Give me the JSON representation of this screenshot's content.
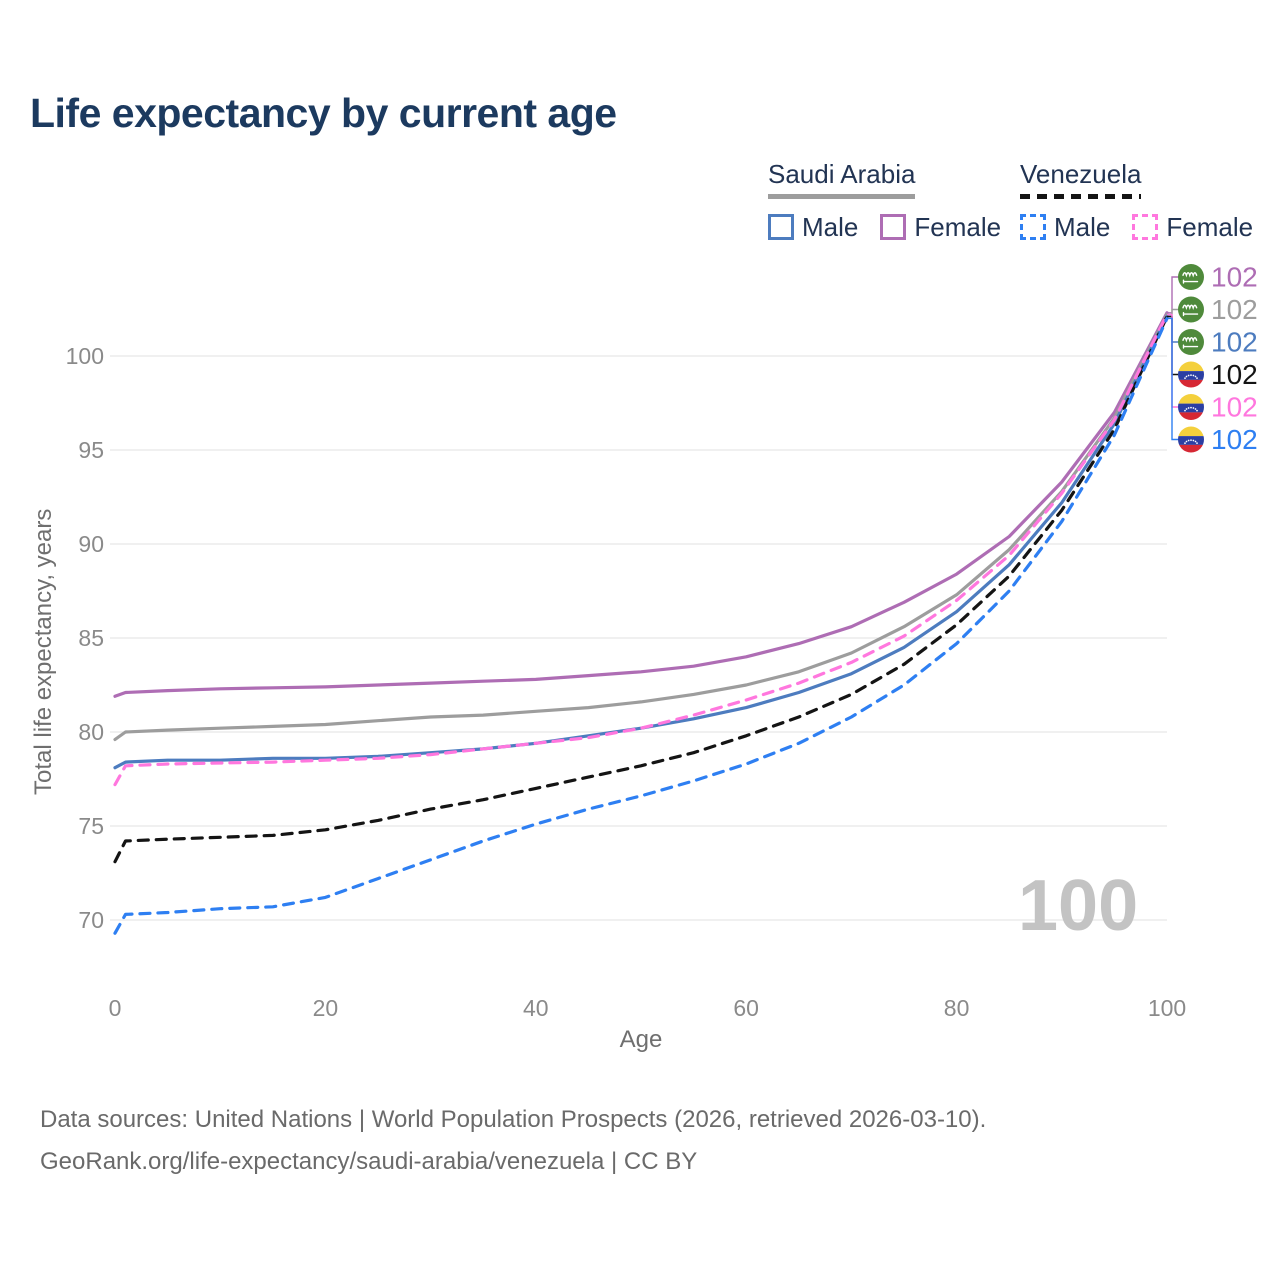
{
  "page": {
    "title": "Life expectancy by current age",
    "watermark": "100",
    "footer": {
      "line1": "Data sources: United Nations | World Population Prospects (2026, retrieved 2026-03-10).",
      "line2": "GeoRank.org/life-expectancy/saudi-arabia/venezuela | CC BY"
    }
  },
  "legend": {
    "groups": [
      {
        "label": "Saudi Arabia",
        "line_style": "solid",
        "underline_color": "#9d9d9d",
        "items": [
          {
            "label": "Male",
            "color": "#4d7cbf",
            "dashed": false
          },
          {
            "label": "Female",
            "color": "#ae6db4",
            "dashed": false
          }
        ]
      },
      {
        "label": "Venezuela",
        "line_style": "dashed",
        "underline_color": "#141414",
        "items": [
          {
            "label": "Male",
            "color": "#2e7ff2",
            "dashed": true
          },
          {
            "label": "Female",
            "color": "#ff77de",
            "dashed": true
          }
        ]
      }
    ]
  },
  "icons": {
    "saudi_flag": "saudi-arabia-flag-icon",
    "venezuela_flag": "venezuela-flag-icon",
    "flag_colors": {
      "saudi_green": "#4f8a3b",
      "venezuela_yellow": "#f4d03c",
      "venezuela_blue": "#2b3fa3",
      "venezuela_red": "#d62834"
    }
  },
  "chart_data": {
    "type": "line",
    "title": "Life expectancy by current age",
    "xlabel": "Age",
    "ylabel": "Total life expectancy, years",
    "x_ticks": [
      0,
      20,
      40,
      60,
      80,
      100
    ],
    "y_ticks": [
      70,
      75,
      80,
      85,
      90,
      95,
      100
    ],
    "x_range": [
      0,
      100
    ],
    "y_range": [
      69,
      103.5
    ],
    "grid": "horizontal-only",
    "legend_position": "top-right",
    "x": [
      0,
      1,
      5,
      10,
      15,
      20,
      25,
      30,
      35,
      40,
      45,
      50,
      55,
      60,
      65,
      70,
      75,
      80,
      85,
      90,
      95,
      100
    ],
    "series": [
      {
        "name": "Saudi Arabia Female",
        "country": "Saudi Arabia",
        "sex": "Female",
        "flag": "saudi",
        "color": "#ae6db4",
        "dashed": false,
        "end_value": "102",
        "values": [
          81.9,
          82.1,
          82.2,
          82.3,
          82.35,
          82.4,
          82.5,
          82.6,
          82.7,
          82.8,
          83.0,
          83.2,
          83.5,
          84.0,
          84.7,
          85.6,
          86.9,
          88.4,
          90.4,
          93.3,
          97.0,
          102.3
        ]
      },
      {
        "name": "Saudi Arabia Both sexes",
        "country": "Saudi Arabia",
        "sex": "Both sexes",
        "flag": "saudi",
        "color": "#9d9d9d",
        "dashed": false,
        "end_value": "102",
        "values": [
          79.6,
          80.0,
          80.1,
          80.2,
          80.3,
          80.4,
          80.6,
          80.8,
          80.9,
          81.1,
          81.3,
          81.6,
          82.0,
          82.5,
          83.2,
          84.2,
          85.6,
          87.3,
          89.7,
          92.8,
          96.7,
          102.2
        ]
      },
      {
        "name": "Saudi Arabia Male",
        "country": "Saudi Arabia",
        "sex": "Male",
        "flag": "saudi",
        "color": "#4d7cbf",
        "dashed": false,
        "end_value": "102",
        "values": [
          78.1,
          78.4,
          78.5,
          78.5,
          78.6,
          78.6,
          78.7,
          78.9,
          79.1,
          79.4,
          79.8,
          80.2,
          80.7,
          81.3,
          82.1,
          83.1,
          84.5,
          86.4,
          88.9,
          92.2,
          96.4,
          102.1
        ]
      },
      {
        "name": "Venezuela Both sexes",
        "country": "Venezuela",
        "sex": "Both sexes",
        "flag": "venezuela",
        "color": "#141414",
        "dashed": true,
        "end_value": "102",
        "values": [
          73.1,
          74.2,
          74.3,
          74.4,
          74.5,
          74.8,
          75.3,
          75.9,
          76.4,
          77.0,
          77.6,
          78.2,
          78.9,
          79.8,
          80.8,
          82.0,
          83.6,
          85.7,
          88.3,
          91.8,
          96.1,
          102.1
        ]
      },
      {
        "name": "Venezuela Female",
        "country": "Venezuela",
        "sex": "Female",
        "flag": "venezuela",
        "color": "#ff77de",
        "dashed": true,
        "end_value": "102",
        "values": [
          77.2,
          78.2,
          78.3,
          78.35,
          78.4,
          78.5,
          78.6,
          78.8,
          79.1,
          79.4,
          79.7,
          80.2,
          80.9,
          81.7,
          82.6,
          83.7,
          85.1,
          87.0,
          89.4,
          92.7,
          96.6,
          102.2
        ]
      },
      {
        "name": "Venezuela Male",
        "country": "Venezuela",
        "sex": "Male",
        "flag": "venezuela",
        "color": "#2e7ff2",
        "dashed": true,
        "end_value": "102",
        "values": [
          69.3,
          70.3,
          70.4,
          70.6,
          70.7,
          71.2,
          72.2,
          73.2,
          74.2,
          75.1,
          75.9,
          76.6,
          77.4,
          78.3,
          79.4,
          80.8,
          82.5,
          84.7,
          87.5,
          91.2,
          95.8,
          102.0
        ]
      }
    ]
  }
}
